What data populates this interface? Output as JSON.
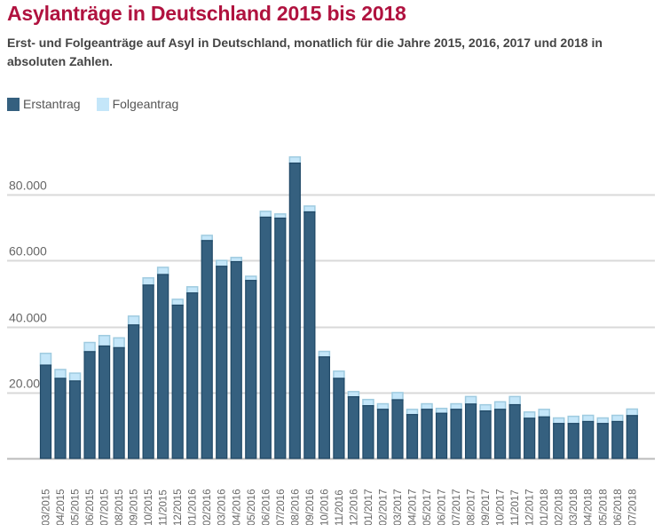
{
  "header": {
    "title": "Asylanträge in Deutschland 2015 bis 2018",
    "subtitle": "Erst- und Folgeanträge auf Asyl in Deutschland, monatlich für die Jahre 2015, 2016, 2017 und 2018 in absoluten Zahlen."
  },
  "colors": {
    "title": "#b0123f",
    "erstantrag": "#35607f",
    "erstantrag_edge": "#1f4866",
    "folgeantrag": "#c4e6f9",
    "folgeantrag_edge": "#9fcbe0",
    "grid": "#d9d9d9",
    "axis": "#bbbbbb"
  },
  "chart_data": {
    "type": "bar",
    "stacked": true,
    "title": "Asylanträge in Deutschland 2015 bis 2018",
    "subtitle": "Erst- und Folgeanträge auf Asyl in Deutschland, monatlich für die Jahre 2015, 2016, 2017 und 2018 in absoluten Zahlen.",
    "xlabel": "",
    "ylabel": "",
    "ylim": [
      0,
      95000
    ],
    "yticks": [
      20000,
      40000,
      60000,
      80000
    ],
    "ytick_labels": [
      "20.000",
      "40.000",
      "60.000",
      "80.000"
    ],
    "grid": true,
    "legend_position": "top-left",
    "categories": [
      "03/2015",
      "04/2015",
      "05/2015",
      "06/2015",
      "07/2015",
      "08/2015",
      "09/2015",
      "10/2015",
      "11/2015",
      "12/2015",
      "01/2016",
      "02/2016",
      "03/2016",
      "04/2016",
      "05/2016",
      "06/2016",
      "07/2016",
      "08/2016",
      "09/2016",
      "10/2016",
      "11/2016",
      "12/2016",
      "01/2017",
      "02/2017",
      "03/2017",
      "04/2017",
      "05/2017",
      "06/2017",
      "07/2017",
      "08/2017",
      "09/2017",
      "10/2017",
      "11/2017",
      "12/2017",
      "01/2018",
      "02/2018",
      "03/2018",
      "04/2018",
      "05/2018",
      "06/2018",
      "07/2018"
    ],
    "series": [
      {
        "name": "Erstantrag",
        "values": [
          28300,
          24300,
          23500,
          32400,
          34100,
          33600,
          40500,
          52600,
          55800,
          46500,
          50200,
          66100,
          58300,
          59700,
          54000,
          73200,
          72900,
          89600,
          74800,
          30800,
          24300,
          18700,
          16000,
          14900,
          17800,
          13300,
          14900,
          13700,
          14900,
          16500,
          14400,
          14900,
          16300,
          12200,
          12600,
          10600,
          10600,
          11200,
          10600,
          11200,
          13000
        ]
      },
      {
        "name": "Folgeantrag",
        "values": [
          3700,
          2800,
          2500,
          2900,
          3300,
          3100,
          2800,
          2300,
          2300,
          1900,
          2000,
          1700,
          1900,
          1400,
          1400,
          1900,
          1400,
          2000,
          1900,
          1800,
          2300,
          1700,
          2000,
          1800,
          2300,
          1700,
          1800,
          1600,
          1800,
          2400,
          2000,
          2400,
          2600,
          2000,
          2400,
          1800,
          2300,
          2000,
          1800,
          2000,
          2100
        ]
      }
    ]
  }
}
